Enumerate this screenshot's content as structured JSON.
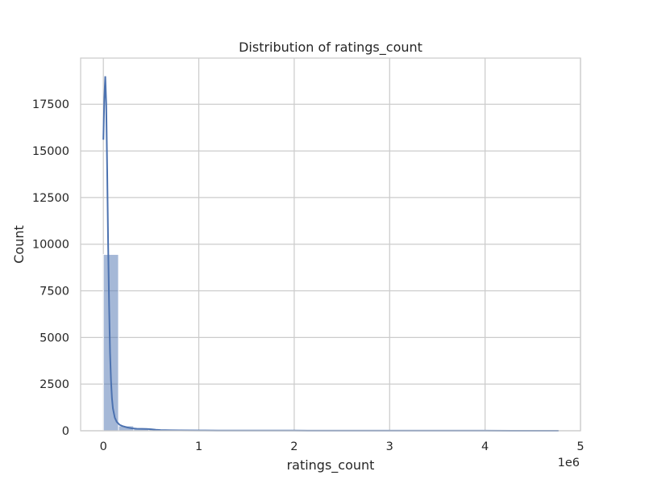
{
  "chart_data": {
    "type": "bar",
    "title": "Distribution of ratings_count",
    "xlabel": "ratings_count",
    "ylabel": "Count",
    "x_offset_text": "1e6",
    "xlim": [
      -0.23826,
      5.0
    ],
    "ylim": [
      0,
      19975
    ],
    "x_ticks": [
      0,
      1,
      2,
      3,
      4,
      5
    ],
    "y_ticks": [
      0,
      2500,
      5000,
      7500,
      10000,
      12500,
      15000,
      17500
    ],
    "x_unit_multiplier": 1000000,
    "grid": true,
    "bar_color": "#4c72b0",
    "bar_alpha": 0.5,
    "kde_color": "#4c72b0",
    "bins": [
      {
        "x0": 0.0,
        "x1": 0.159,
        "count": 9450
      },
      {
        "x0": 0.159,
        "x1": 0.318,
        "count": 260
      },
      {
        "x0": 0.318,
        "x1": 0.477,
        "count": 120
      },
      {
        "x0": 0.477,
        "x1": 0.636,
        "count": 70
      },
      {
        "x0": 0.636,
        "x1": 0.795,
        "count": 40
      },
      {
        "x0": 0.795,
        "x1": 0.954,
        "count": 30
      },
      {
        "x0": 0.954,
        "x1": 1.113,
        "count": 25
      },
      {
        "x0": 1.113,
        "x1": 1.272,
        "count": 20
      },
      {
        "x0": 1.272,
        "x1": 1.431,
        "count": 15
      },
      {
        "x0": 1.431,
        "x1": 1.59,
        "count": 12
      },
      {
        "x0": 1.59,
        "x1": 1.749,
        "count": 10
      },
      {
        "x0": 1.749,
        "x1": 1.908,
        "count": 8
      },
      {
        "x0": 1.908,
        "x1": 2.067,
        "count": 7
      },
      {
        "x0": 2.067,
        "x1": 2.226,
        "count": 5
      },
      {
        "x0": 2.226,
        "x1": 2.385,
        "count": 4
      },
      {
        "x0": 2.385,
        "x1": 2.544,
        "count": 3
      },
      {
        "x0": 2.544,
        "x1": 2.703,
        "count": 3
      },
      {
        "x0": 2.703,
        "x1": 2.862,
        "count": 2
      },
      {
        "x0": 2.862,
        "x1": 3.021,
        "count": 2
      },
      {
        "x0": 3.021,
        "x1": 3.18,
        "count": 2
      },
      {
        "x0": 3.18,
        "x1": 3.339,
        "count": 1
      },
      {
        "x0": 3.339,
        "x1": 3.498,
        "count": 1
      },
      {
        "x0": 3.498,
        "x1": 3.657,
        "count": 1
      },
      {
        "x0": 3.657,
        "x1": 3.816,
        "count": 1
      },
      {
        "x0": 3.816,
        "x1": 3.975,
        "count": 1
      },
      {
        "x0": 3.975,
        "x1": 4.134,
        "count": 1
      },
      {
        "x0": 4.134,
        "x1": 4.293,
        "count": 1
      },
      {
        "x0": 4.293,
        "x1": 4.452,
        "count": 1
      },
      {
        "x0": 4.452,
        "x1": 4.611,
        "count": 1
      },
      {
        "x0": 4.611,
        "x1": 4.77,
        "count": 1
      }
    ],
    "kde": {
      "x": [
        0.0,
        0.01,
        0.02,
        0.03,
        0.04,
        0.05,
        0.06,
        0.07,
        0.08,
        0.09,
        0.1,
        0.12,
        0.14,
        0.17,
        0.2,
        0.25,
        0.3,
        0.35,
        0.4,
        0.45,
        0.5,
        0.55,
        0.6,
        0.7,
        0.8,
        1.0,
        1.2,
        1.5,
        2.0,
        2.5,
        3.0,
        3.5,
        4.0,
        4.5,
        4.77
      ],
      "y": [
        15600,
        17800,
        19000,
        17500,
        14000,
        10000,
        6800,
        4200,
        2700,
        1750,
        1200,
        700,
        480,
        320,
        250,
        180,
        130,
        110,
        105,
        100,
        80,
        55,
        40,
        25,
        20,
        15,
        12,
        10,
        8,
        6,
        5,
        4,
        3,
        2,
        2
      ]
    }
  }
}
